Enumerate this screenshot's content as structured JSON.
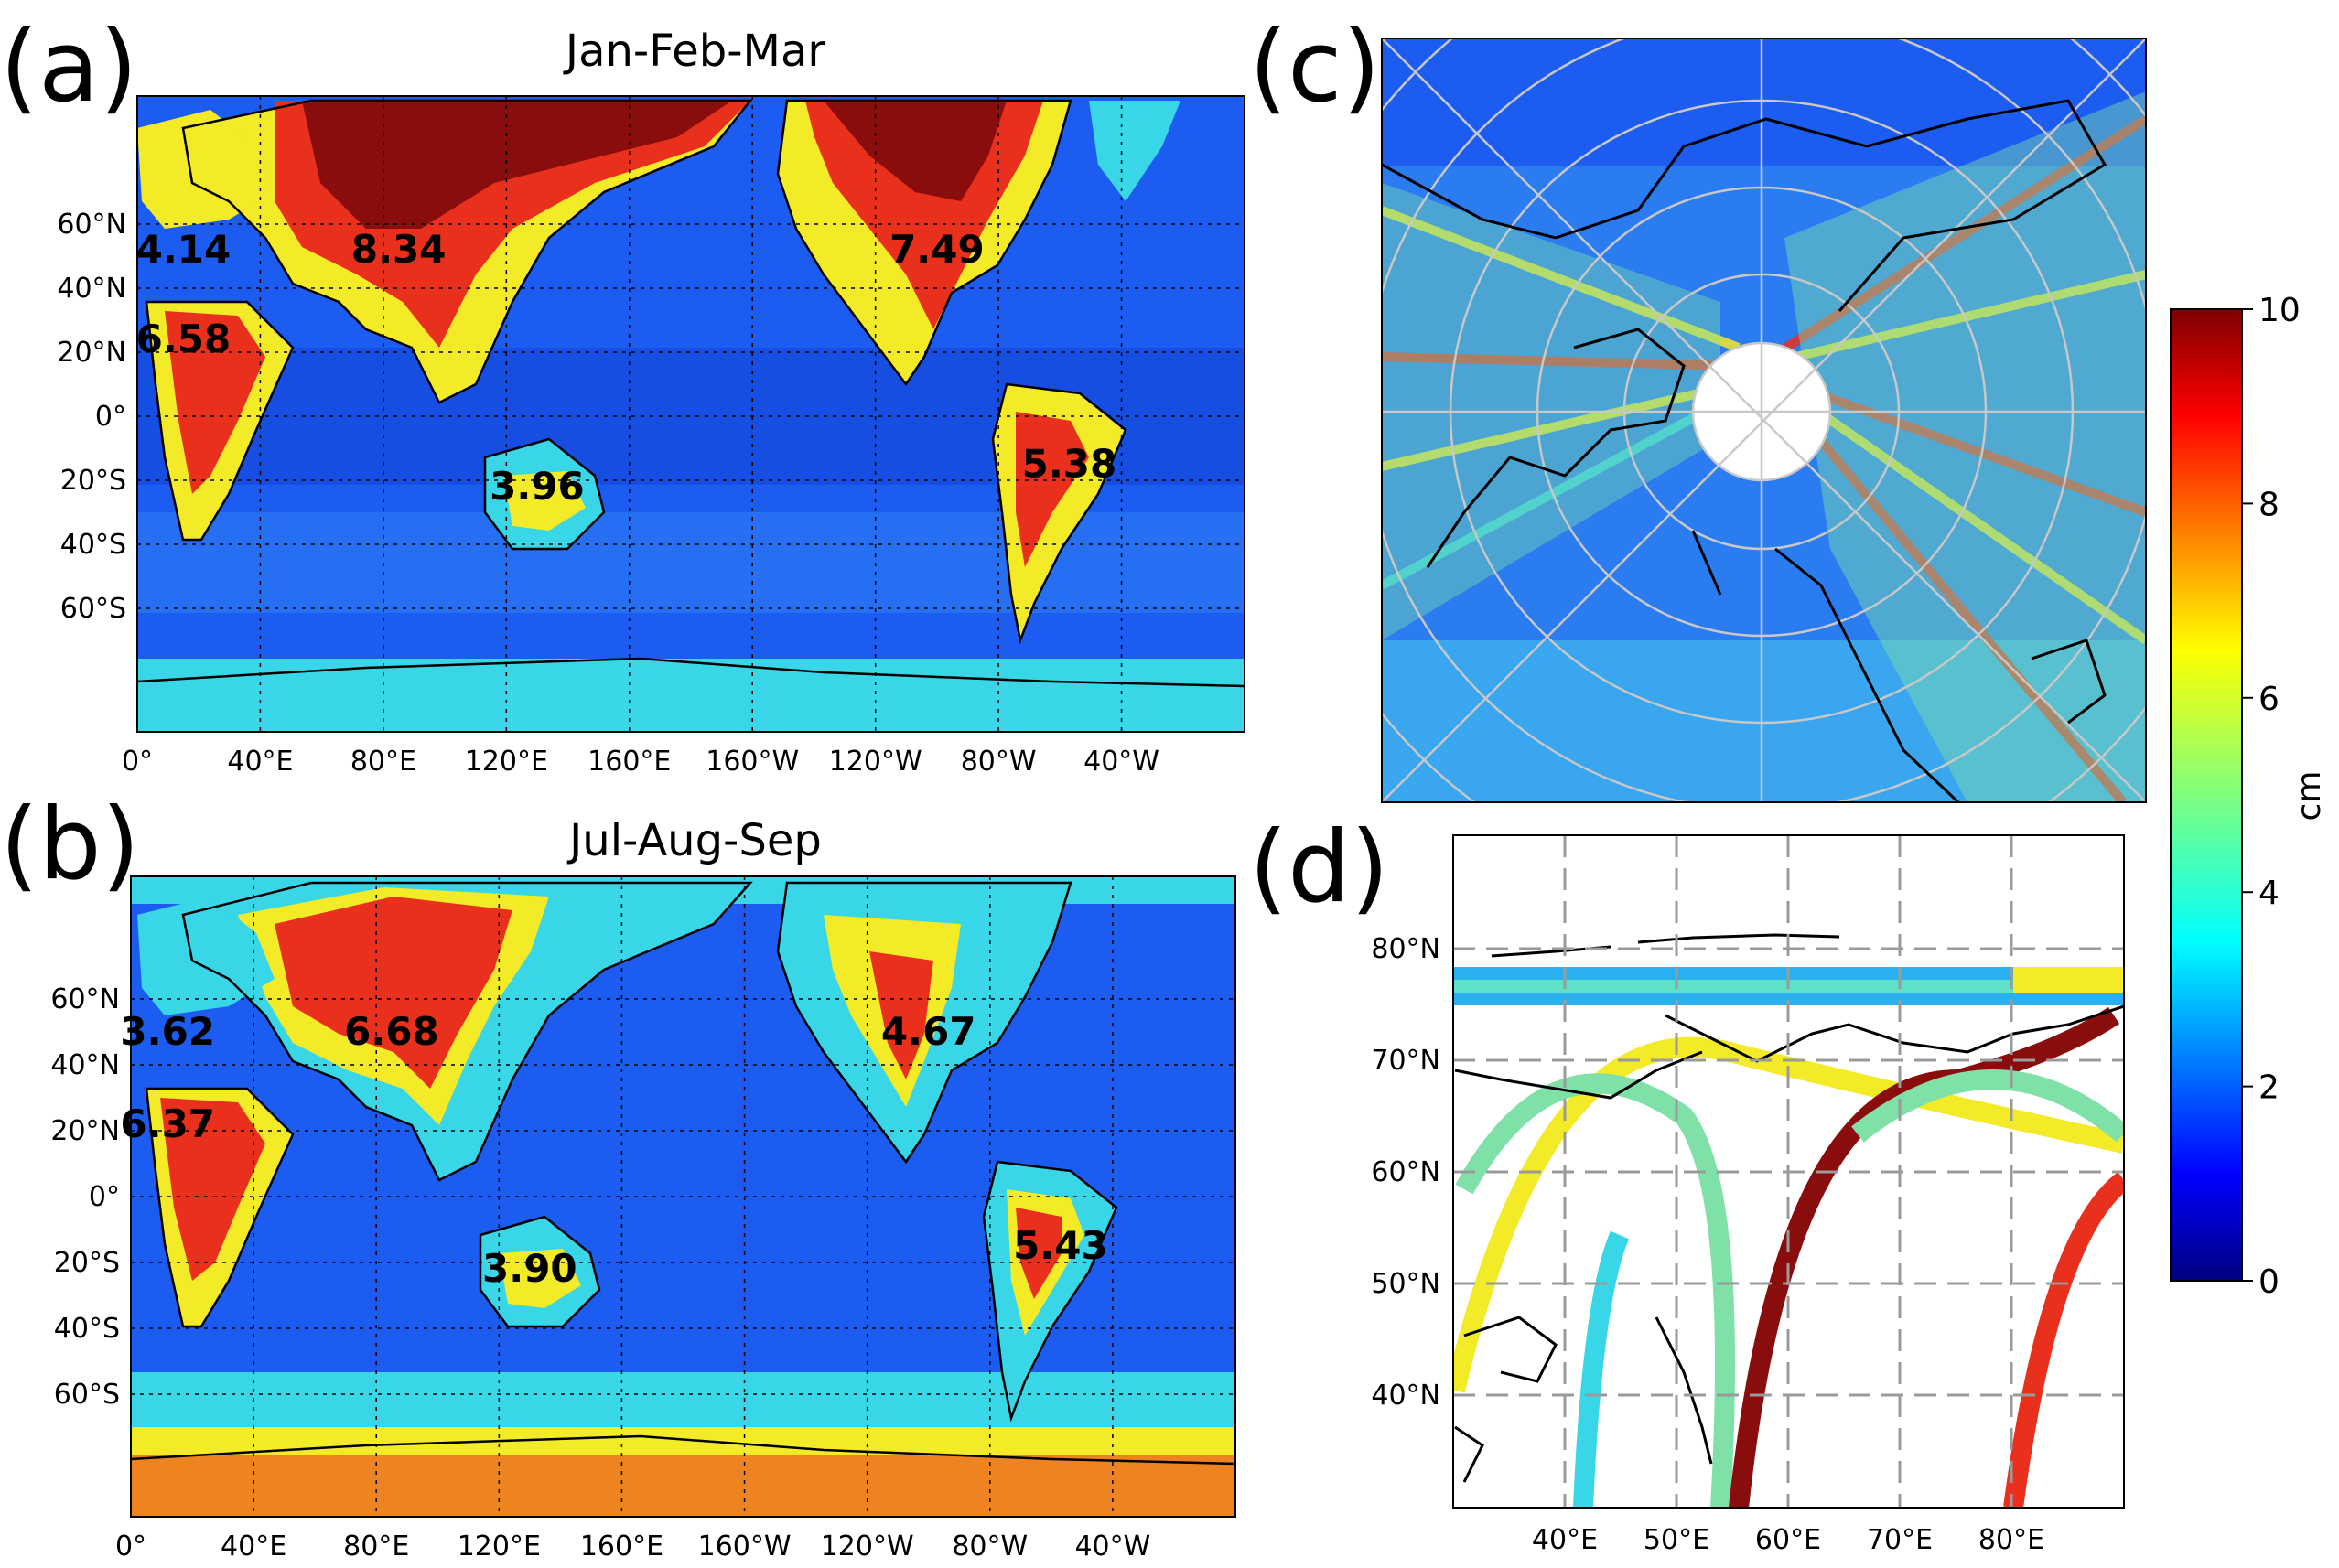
{
  "chart_data": [
    {
      "panel": "(a)",
      "type": "heatmap",
      "title": "Jan-Feb-Mar",
      "x_ticks": [
        "0°",
        "40°E",
        "80°E",
        "120°E",
        "160°E",
        "160°W",
        "120°W",
        "80°W",
        "40°W"
      ],
      "y_ticks": [
        "60°N",
        "40°N",
        "20°N",
        "0°",
        "20°S",
        "40°S",
        "60°S"
      ],
      "annotations": [
        {
          "label": "4.14",
          "lon": 15,
          "lat": 52
        },
        {
          "label": "8.34",
          "lon": 85,
          "lat": 52
        },
        {
          "label": "7.49",
          "lon": -100,
          "lat": 52
        },
        {
          "label": "6.58",
          "lon": 15,
          "lat": 24
        },
        {
          "label": "5.38",
          "lon": -57,
          "lat": -15
        },
        {
          "label": "3.96",
          "lon": 130,
          "lat": -22
        }
      ]
    },
    {
      "panel": "(b)",
      "type": "heatmap",
      "title": "Jul-Aug-Sep",
      "x_ticks": [
        "0°",
        "40°E",
        "80°E",
        "120°E",
        "160°E",
        "160°W",
        "120°W",
        "80°W",
        "40°W"
      ],
      "y_ticks": [
        "60°N",
        "40°N",
        "20°N",
        "0°",
        "20°S",
        "40°S",
        "60°S"
      ],
      "annotations": [
        {
          "label": "3.62",
          "lon": 12,
          "lat": 50
        },
        {
          "label": "6.68",
          "lon": 85,
          "lat": 50
        },
        {
          "label": "4.67",
          "lon": -100,
          "lat": 50
        },
        {
          "label": "6.37",
          "lon": 12,
          "lat": 22
        },
        {
          "label": "5.43",
          "lon": -57,
          "lat": -15
        },
        {
          "label": "3.90",
          "lon": 130,
          "lat": -22
        }
      ]
    },
    {
      "panel": "(c)",
      "type": "heatmap",
      "projection": "north-polar stereographic"
    },
    {
      "panel": "(d)",
      "type": "heatmap",
      "x_ticks": [
        "40°E",
        "50°E",
        "60°E",
        "70°E",
        "80°E"
      ],
      "y_ticks": [
        "80°N",
        "70°N",
        "60°N",
        "50°N",
        "40°N"
      ]
    }
  ],
  "colorbar": {
    "label": "cm",
    "ticks": [
      "0",
      "2",
      "4",
      "6",
      "8",
      "10"
    ],
    "range": [
      0,
      10
    ],
    "colormap": "jet"
  },
  "colors": {
    "ocean": "#1d5cf0",
    "land_low": "#38d6e6",
    "land_mid": "#f3ea28",
    "land_high": "#e8301c",
    "saturated": "#8a0d0d"
  }
}
